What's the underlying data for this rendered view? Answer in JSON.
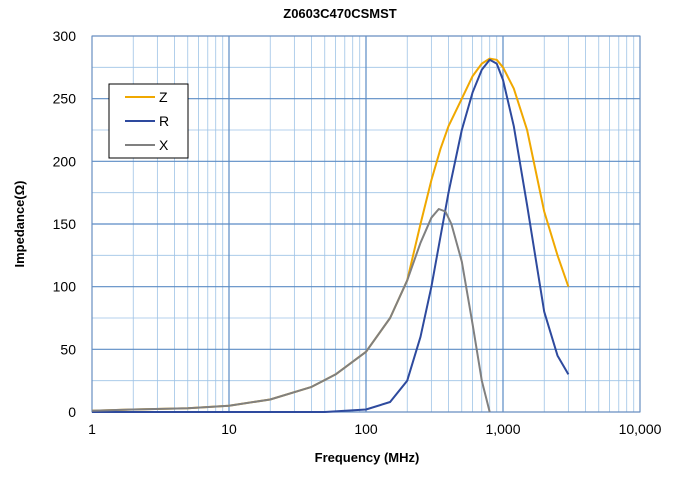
{
  "chart_data": {
    "type": "line",
    "title": "Z0603C470CSMST",
    "xlabel": "Frequency (MHz)",
    "ylabel": "Impedance(Ω)",
    "x_scale": "log",
    "xlim": [
      1,
      10000
    ],
    "ylim": [
      0,
      300
    ],
    "x_ticks": [
      1,
      10,
      100,
      1000,
      10000
    ],
    "x_tick_labels": [
      "1",
      "10",
      "100",
      "1,000",
      "10,000"
    ],
    "y_ticks": [
      0,
      50,
      100,
      150,
      200,
      250,
      300
    ],
    "y_tick_labels": [
      "0",
      "50",
      "100",
      "150",
      "200",
      "250",
      "300"
    ],
    "grid": true,
    "legend_position": "top-left",
    "series": [
      {
        "name": "Z",
        "color": "#F0A800",
        "points": [
          [
            1,
            1
          ],
          [
            2,
            2
          ],
          [
            5,
            3
          ],
          [
            10,
            5
          ],
          [
            20,
            10
          ],
          [
            40,
            20
          ],
          [
            60,
            30
          ],
          [
            100,
            48
          ],
          [
            150,
            75
          ],
          [
            200,
            105
          ],
          [
            250,
            150
          ],
          [
            300,
            185
          ],
          [
            350,
            210
          ],
          [
            400,
            228
          ],
          [
            500,
            250
          ],
          [
            600,
            268
          ],
          [
            700,
            278
          ],
          [
            800,
            282
          ],
          [
            900,
            281
          ],
          [
            1000,
            275
          ],
          [
            1200,
            258
          ],
          [
            1500,
            225
          ],
          [
            2000,
            160
          ],
          [
            2500,
            125
          ],
          [
            3000,
            100
          ]
        ]
      },
      {
        "name": "R",
        "color": "#2E4A9E",
        "points": [
          [
            1,
            0
          ],
          [
            10,
            0
          ],
          [
            50,
            0
          ],
          [
            100,
            2
          ],
          [
            150,
            8
          ],
          [
            200,
            25
          ],
          [
            250,
            60
          ],
          [
            300,
            100
          ],
          [
            350,
            140
          ],
          [
            400,
            175
          ],
          [
            500,
            225
          ],
          [
            600,
            255
          ],
          [
            700,
            273
          ],
          [
            800,
            281
          ],
          [
            900,
            278
          ],
          [
            1000,
            265
          ],
          [
            1200,
            228
          ],
          [
            1500,
            165
          ],
          [
            2000,
            80
          ],
          [
            2500,
            45
          ],
          [
            3000,
            30
          ]
        ]
      },
      {
        "name": "X",
        "color": "#808080",
        "points": [
          [
            1,
            1
          ],
          [
            2,
            2
          ],
          [
            5,
            3
          ],
          [
            10,
            5
          ],
          [
            20,
            10
          ],
          [
            40,
            20
          ],
          [
            60,
            30
          ],
          [
            100,
            48
          ],
          [
            150,
            75
          ],
          [
            200,
            105
          ],
          [
            250,
            135
          ],
          [
            300,
            155
          ],
          [
            340,
            162
          ],
          [
            380,
            160
          ],
          [
            420,
            150
          ],
          [
            500,
            120
          ],
          [
            600,
            70
          ],
          [
            700,
            25
          ],
          [
            800,
            0
          ]
        ]
      }
    ]
  }
}
